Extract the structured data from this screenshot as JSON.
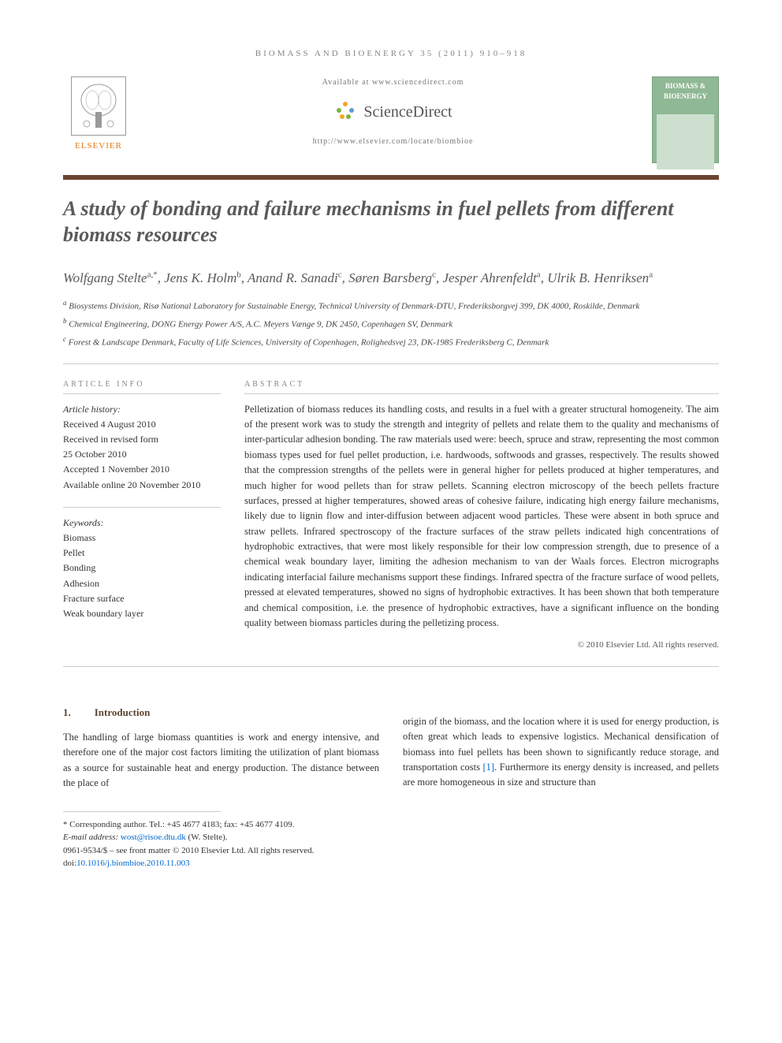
{
  "running_head": "BIOMASS AND BIOENERGY 35 (2011) 910–918",
  "header": {
    "elsevier_label": "ELSEVIER",
    "available_at": "Available at www.sciencedirect.com",
    "sciencedirect_label": "ScienceDirect",
    "locate_url": "http://www.elsevier.com/locate/biombioe",
    "journal_cover_title": "BIOMASS & BIOENERGY"
  },
  "title": "A study of bonding and failure mechanisms in fuel pellets from different biomass resources",
  "authors_html": "Wolfgang Stelte",
  "authors": [
    {
      "name": "Wolfgang Stelte",
      "aff": "a,*"
    },
    {
      "name": "Jens K. Holm",
      "aff": "b"
    },
    {
      "name": "Anand R. Sanadi",
      "aff": "c"
    },
    {
      "name": "Søren Barsberg",
      "aff": "c"
    },
    {
      "name": "Jesper Ahrenfeldt",
      "aff": "a"
    },
    {
      "name": "Ulrik B. Henriksen",
      "aff": "a"
    }
  ],
  "affiliations": [
    {
      "sup": "a",
      "text": "Biosystems Division, Risø National Laboratory for Sustainable Energy, Technical University of Denmark-DTU, Frederiksborgvej 399, DK 4000, Roskilde, Denmark"
    },
    {
      "sup": "b",
      "text": "Chemical Engineering, DONG Energy Power A/S, A.C. Meyers Vænge 9, DK 2450, Copenhagen SV, Denmark"
    },
    {
      "sup": "c",
      "text": "Forest & Landscape Denmark, Faculty of Life Sciences, University of Copenhagen, Rolighedsvej 23, DK-1985 Frederiksberg C, Denmark"
    }
  ],
  "article_info": {
    "header": "ARTICLE INFO",
    "history_label": "Article history:",
    "received": "Received 4 August 2010",
    "revised_label": "Received in revised form",
    "revised_date": "25 October 2010",
    "accepted": "Accepted 1 November 2010",
    "online": "Available online 20 November 2010",
    "keywords_label": "Keywords:",
    "keywords": [
      "Biomass",
      "Pellet",
      "Bonding",
      "Adhesion",
      "Fracture surface",
      "Weak boundary layer"
    ]
  },
  "abstract": {
    "header": "ABSTRACT",
    "text": "Pelletization of biomass reduces its handling costs, and results in a fuel with a greater structural homogeneity. The aim of the present work was to study the strength and integrity of pellets and relate them to the quality and mechanisms of inter-particular adhesion bonding. The raw materials used were: beech, spruce and straw, representing the most common biomass types used for fuel pellet production, i.e. hardwoods, softwoods and grasses, respectively. The results showed that the compression strengths of the pellets were in general higher for pellets produced at higher temperatures, and much higher for wood pellets than for straw pellets. Scanning electron microscopy of the beech pellets fracture surfaces, pressed at higher temperatures, showed areas of cohesive failure, indicating high energy failure mechanisms, likely due to lignin flow and inter-diffusion between adjacent wood particles. These were absent in both spruce and straw pellets. Infrared spectroscopy of the fracture surfaces of the straw pellets indicated high concentrations of hydrophobic extractives, that were most likely responsible for their low compression strength, due to presence of a chemical weak boundary layer, limiting the adhesion mechanism to van der Waals forces. Electron micrographs indicating interfacial failure mechanisms support these findings. Infrared spectra of the fracture surface of wood pellets, pressed at elevated temperatures, showed no signs of hydrophobic extractives. It has been shown that both temperature and chemical composition, i.e. the presence of hydrophobic extractives, have a significant influence on the bonding quality between biomass particles during the pelletizing process.",
    "copyright": "© 2010 Elsevier Ltd. All rights reserved."
  },
  "section1": {
    "num": "1.",
    "title": "Introduction",
    "col1": "The handling of large biomass quantities is work and energy intensive, and therefore one of the major cost factors limiting the utilization of plant biomass as a source for sustainable heat and energy production. The distance between the place of",
    "col2_part1": "origin of the biomass, and the location where it is used for energy production, is often great which leads to expensive logistics. Mechanical densification of biomass into fuel pellets has been shown to significantly reduce storage, and transportation costs ",
    "col2_ref": "[1]",
    "col2_part2": ". Furthermore its energy density is increased, and pellets are more homogeneous in size and structure than"
  },
  "footnotes": {
    "corresponding": "* Corresponding author. Tel.: +45 4677 4183; fax: +45 4677 4109.",
    "email_label": "E-mail address: ",
    "email": "wost@risoe.dtu.dk",
    "email_name": " (W. Stelte).",
    "front_matter": "0961-9534/$ – see front matter © 2010 Elsevier Ltd. All rights reserved.",
    "doi_label": "doi:",
    "doi": "10.1016/j.biombioe.2010.11.003"
  },
  "colors": {
    "elsevier_orange": "#e67817",
    "brown_bar": "#6b4530",
    "title_gray": "#5a5a5a",
    "link_blue": "#0066cc",
    "cover_green": "#8fb894",
    "sd_orange": "#f5a623",
    "sd_green": "#7cb342",
    "sd_blue": "#5b9bd5"
  }
}
